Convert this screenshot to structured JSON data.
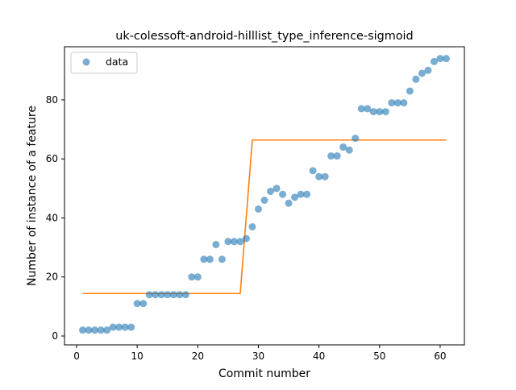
{
  "chart_data": {
    "type": "scatter",
    "title": "uk-colessoft-android-hilllist_type_inference-sigmoid",
    "xlabel": "Commit number",
    "ylabel": "Number of instance of a feature",
    "xlim": [
      -2,
      64
    ],
    "ylim": [
      -3,
      98
    ],
    "xticks": [
      0,
      10,
      20,
      30,
      40,
      50,
      60
    ],
    "yticks": [
      0,
      20,
      40,
      60,
      80
    ],
    "grid": false,
    "legend": {
      "placement": "top-left",
      "entries": [
        "data"
      ]
    },
    "colors": {
      "data": "#1f77b4",
      "fit": "#ff7f0e",
      "frame": "#000000"
    },
    "series": [
      {
        "name": "data",
        "kind": "scatter",
        "x": [
          1,
          2,
          3,
          4,
          5,
          6,
          7,
          8,
          9,
          10,
          11,
          12,
          13,
          14,
          15,
          16,
          17,
          18,
          19,
          20,
          21,
          22,
          23,
          24,
          25,
          26,
          27,
          28,
          29,
          30,
          31,
          32,
          33,
          34,
          35,
          36,
          37,
          38,
          39,
          40,
          41,
          42,
          43,
          44,
          45,
          46,
          47,
          48,
          49,
          50,
          51,
          52,
          53,
          54,
          55,
          56,
          57,
          58,
          59,
          60,
          61
        ],
        "y": [
          2,
          2,
          2,
          2,
          2,
          3,
          3,
          3,
          3,
          11,
          11,
          14,
          14,
          14,
          14,
          14,
          14,
          14,
          20,
          20,
          26,
          26,
          31,
          26,
          32,
          32,
          32,
          33,
          37,
          43,
          46,
          49,
          50,
          48,
          45,
          47,
          48,
          48,
          56,
          54,
          54,
          61,
          61,
          64,
          63,
          67,
          77,
          77,
          76,
          76,
          76,
          79,
          79,
          79,
          83,
          87,
          89,
          90,
          93,
          94,
          94
        ]
      },
      {
        "kind": "line",
        "x": [
          1,
          27,
          29,
          61
        ],
        "y": [
          14.4,
          14.4,
          66.4,
          66.4
        ]
      }
    ]
  }
}
